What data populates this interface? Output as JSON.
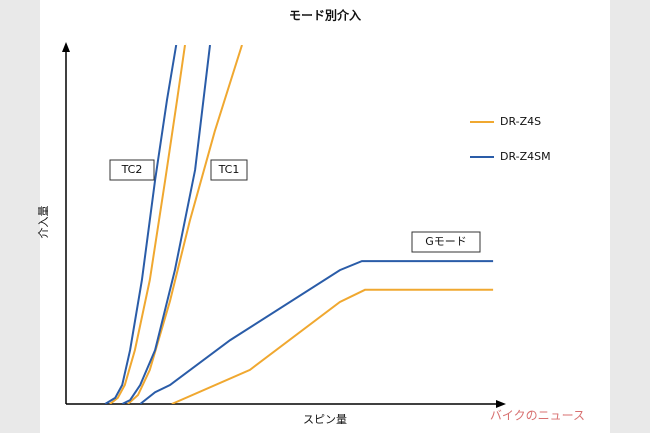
{
  "chart_data": {
    "type": "line",
    "title": "モード別介入",
    "x_label": "スピン量",
    "y_label": "介入量",
    "xlim": [
      0,
      100
    ],
    "ylim": [
      0,
      100
    ],
    "grid": false,
    "legend": "right",
    "annotations": [
      "TC2",
      "TC1",
      "Gモード"
    ],
    "watermark": "バイクのニュース",
    "series": [
      {
        "name": "DR-Z4S",
        "color": "#f0a830",
        "x": [
          10.0,
          11.8,
          13.4,
          15.7,
          19.1,
          22.6,
          25.3,
          27.1,
          null,
          14.1,
          16.4,
          19.1,
          23.7,
          28.2,
          33.9,
          40.1,
          null,
          24.1,
          41.9,
          62.4,
          68.1,
          97.3
        ],
        "values": [
          0,
          1.7,
          5.3,
          15.0,
          34.5,
          62.4,
          84.7,
          100,
          null,
          0,
          2.5,
          9.5,
          28.7,
          51.0,
          76.0,
          100,
          null,
          0,
          9.5,
          28.4,
          31.8,
          31.8
        ]
      },
      {
        "name": "DR-Z4SM",
        "color": "#2a5ca8",
        "x": [
          8.9,
          11.2,
          12.8,
          14.6,
          17.3,
          20.3,
          23.0,
          25.1,
          null,
          12.8,
          14.6,
          16.9,
          20.3,
          24.8,
          29.4,
          32.8,
          null,
          16.9,
          20.3,
          23.7,
          37.4,
          62.4,
          67.4,
          97.3
        ],
        "values": [
          0,
          1.7,
          5.3,
          15.0,
          34.5,
          62.4,
          84.7,
          100,
          null,
          0,
          1.1,
          5.3,
          15.0,
          37.3,
          65.2,
          100,
          null,
          0,
          3.3,
          5.3,
          17.8,
          37.3,
          39.8,
          39.8
        ]
      }
    ]
  }
}
